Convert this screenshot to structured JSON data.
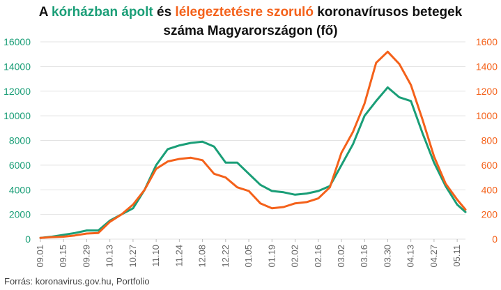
{
  "title": {
    "part1": "A ",
    "part2": "kórházban ápolt",
    "part3": " és ",
    "part4": "lélegeztetésre szoruló",
    "part5": " koronavírusos betegek",
    "line2": "száma Magyarországon  (fő)"
  },
  "source": "Forrás: koronavirus.gov.hu, Portfolio",
  "colors": {
    "hospitalized": "#1a9e77",
    "ventilated": "#f4611a",
    "grid": "#e3e3e3"
  },
  "chart_data": {
    "type": "line",
    "title": "A kórházban ápolt és lélegeztetésre szoruló koronavírusos betegek száma Magyarországon  (fő)",
    "grid": true,
    "x_ticks": [
      "09.01",
      "09.15",
      "09.29",
      "10.13",
      "10.27",
      "11.10",
      "11.24",
      "12.08",
      "12.22",
      "01.05",
      "01.19",
      "02.02",
      "02.16",
      "03.02",
      "03.16",
      "03.30",
      "04.13",
      "04.27",
      "05.11"
    ],
    "y_left": {
      "ticks": [
        "0",
        "2000",
        "4000",
        "6000",
        "8000",
        "10000",
        "12000",
        "14000",
        "16000"
      ],
      "range": [
        0,
        16000
      ]
    },
    "y_right": {
      "ticks": [
        "0",
        "200",
        "400",
        "600",
        "800",
        "1000",
        "1200",
        "1400",
        "1600"
      ],
      "range": [
        0,
        1600
      ]
    },
    "series": [
      {
        "name": "kórházban ápolt",
        "axis": "left",
        "x": [
          "09.01",
          "09.08",
          "09.15",
          "09.22",
          "09.29",
          "10.06",
          "10.13",
          "10.20",
          "10.27",
          "11.03",
          "11.10",
          "11.17",
          "11.24",
          "12.01",
          "12.08",
          "12.15",
          "12.22",
          "12.29",
          "01.05",
          "01.12",
          "01.19",
          "01.26",
          "02.02",
          "02.09",
          "02.16",
          "02.23",
          "03.02",
          "03.09",
          "03.16",
          "03.23",
          "03.30",
          "04.06",
          "04.13",
          "04.20",
          "04.27",
          "05.04",
          "05.11",
          "05.16"
        ],
        "values": [
          100,
          200,
          350,
          500,
          700,
          700,
          1500,
          2000,
          2500,
          4000,
          6000,
          7300,
          7600,
          7800,
          7900,
          7500,
          6200,
          6200,
          5300,
          4400,
          3900,
          3800,
          3600,
          3700,
          3900,
          4300,
          6000,
          7700,
          10000,
          11200,
          12300,
          11500,
          11200,
          8600,
          6200,
          4300,
          2800,
          2200
        ]
      },
      {
        "name": "lélegeztetésre szoruló",
        "axis": "right",
        "x": [
          "09.01",
          "09.08",
          "09.15",
          "09.22",
          "09.29",
          "10.06",
          "10.13",
          "10.20",
          "10.27",
          "11.03",
          "11.10",
          "11.17",
          "11.24",
          "12.01",
          "12.08",
          "12.15",
          "12.22",
          "12.29",
          "01.05",
          "01.12",
          "01.19",
          "01.26",
          "02.02",
          "02.09",
          "02.16",
          "02.23",
          "03.02",
          "03.09",
          "03.16",
          "03.23",
          "03.30",
          "04.06",
          "04.13",
          "04.20",
          "04.27",
          "05.04",
          "05.11",
          "05.16"
        ],
        "values": [
          10,
          15,
          20,
          30,
          45,
          50,
          140,
          200,
          280,
          400,
          570,
          630,
          650,
          660,
          640,
          530,
          500,
          420,
          390,
          290,
          250,
          260,
          290,
          300,
          330,
          420,
          700,
          870,
          1100,
          1430,
          1520,
          1420,
          1250,
          970,
          670,
          450,
          320,
          240
        ]
      }
    ]
  }
}
